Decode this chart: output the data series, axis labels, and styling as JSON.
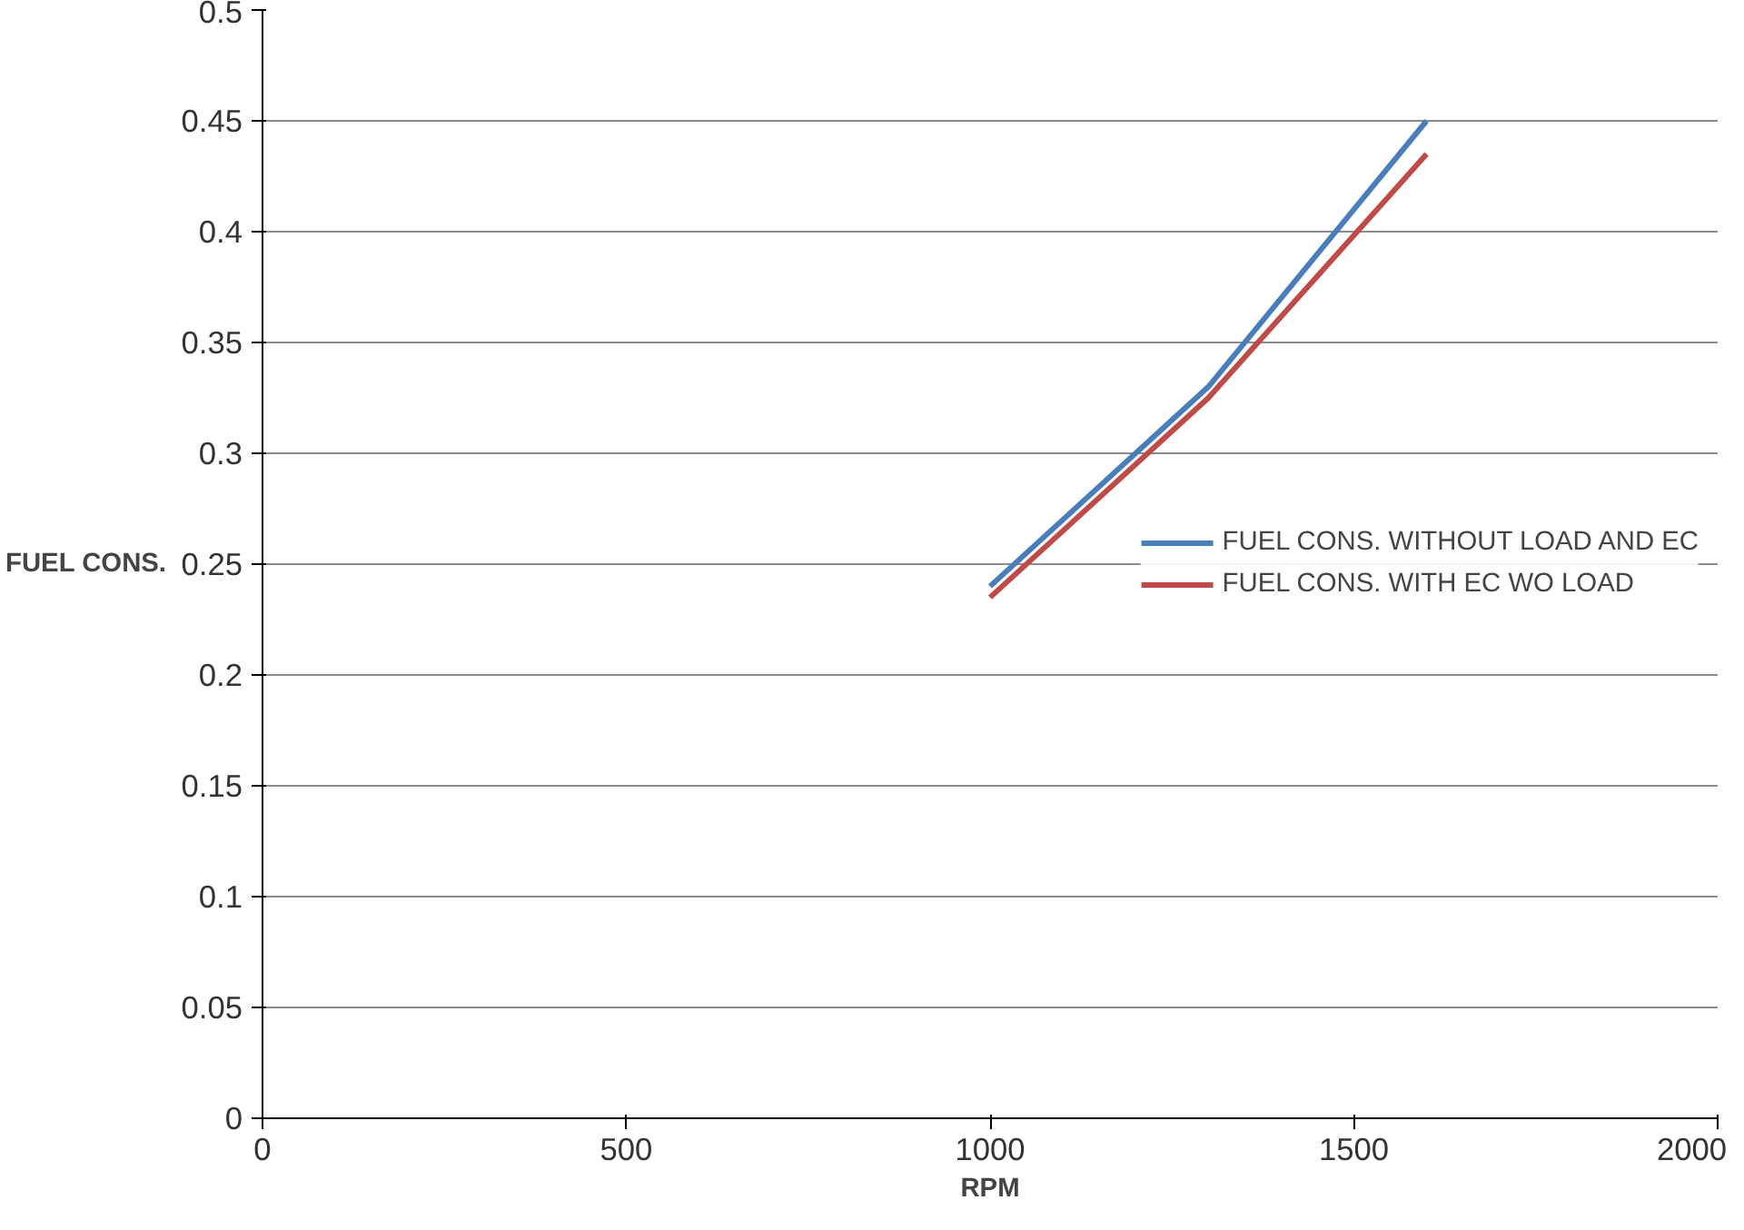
{
  "chart_data": {
    "type": "line",
    "xlabel": "RPM",
    "ylabel": "FUEL CONS.",
    "x": [
      1000,
      1300,
      1600
    ],
    "series": [
      {
        "name": "FUEL CONS. WITHOUT LOAD AND EC",
        "color": "#4a7ebb",
        "values": [
          0.24,
          0.33,
          0.45
        ]
      },
      {
        "name": "FUEL CONS. WITH EC WO LOAD",
        "color": "#be4b48",
        "values": [
          0.235,
          0.325,
          0.435
        ]
      }
    ],
    "xlim": [
      0,
      2000
    ],
    "xticks": [
      0,
      500,
      1000,
      1500,
      2000
    ],
    "ylim": [
      0,
      0.5
    ],
    "yticks": [
      0,
      {
        "value": 0.05,
        "label": "0.05"
      },
      {
        "value": 0.1,
        "label": "0.1"
      },
      {
        "value": 0.15,
        "label": "0.15"
      },
      {
        "value": 0.2,
        "label": "0.2"
      },
      {
        "value": 0.25,
        "label": "0.25"
      },
      {
        "value": 0.3,
        "label": "0.3"
      },
      {
        "value": 0.35,
        "label": "0.35"
      },
      {
        "value": 0.4,
        "label": "0.4"
      },
      {
        "value": 0.45,
        "label": "0.45"
      },
      {
        "value": 0.5,
        "label": "0.5"
      }
    ],
    "grid": "y",
    "legend": "right",
    "marker": "none",
    "line_style": "solid"
  }
}
